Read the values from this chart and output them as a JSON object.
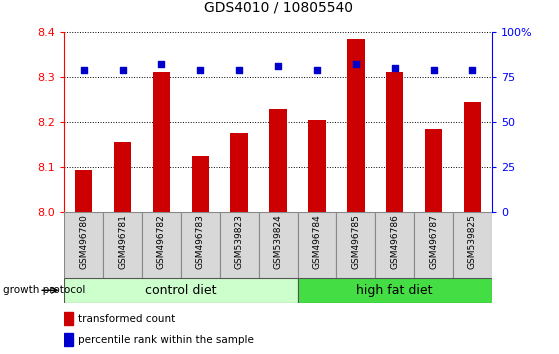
{
  "title": "GDS4010 / 10805540",
  "samples": [
    "GSM496780",
    "GSM496781",
    "GSM496782",
    "GSM496783",
    "GSM539823",
    "GSM539824",
    "GSM496784",
    "GSM496785",
    "GSM496786",
    "GSM496787",
    "GSM539825"
  ],
  "bar_values": [
    8.095,
    8.155,
    8.31,
    8.125,
    8.175,
    8.23,
    8.205,
    8.385,
    8.31,
    8.185,
    8.245
  ],
  "dot_values": [
    79,
    79,
    82,
    79,
    79,
    81,
    79,
    82,
    80,
    79,
    79
  ],
  "ylim_left": [
    8.0,
    8.4
  ],
  "ylim_right": [
    0,
    100
  ],
  "yticks_left": [
    8.0,
    8.1,
    8.2,
    8.3,
    8.4
  ],
  "yticks_right": [
    0,
    25,
    50,
    75,
    100
  ],
  "yticklabels_right": [
    "0",
    "25",
    "50",
    "75",
    "100%"
  ],
  "bar_color": "#cc0000",
  "dot_color": "#0000cc",
  "control_diet_count": 6,
  "high_fat_diet_count": 5,
  "control_label": "control diet",
  "high_fat_label": "high fat diet",
  "growth_protocol_label": "growth protocol",
  "legend_bar_label": "transformed count",
  "legend_dot_label": "percentile rank within the sample",
  "bar_width": 0.45,
  "control_bg": "#ccffcc",
  "highfat_bg": "#44dd44",
  "grid_color": "#000000"
}
